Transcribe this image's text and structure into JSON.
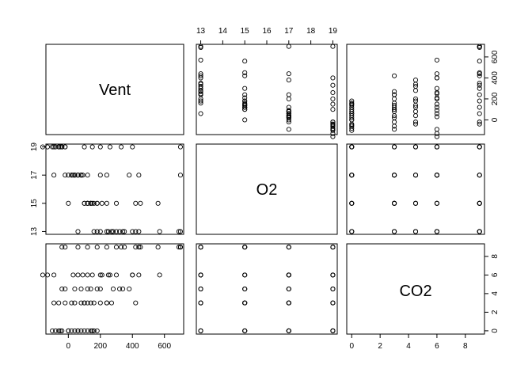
{
  "chart_data": {
    "type": "scatter",
    "title": "",
    "variables": [
      "Vent",
      "O2",
      "CO2"
    ],
    "axis_ticks": {
      "Vent": [
        0,
        200,
        400,
        600
      ],
      "O2": [
        13,
        14,
        15,
        16,
        17,
        18,
        19
      ],
      "O2_left": [
        13,
        15,
        17,
        19
      ],
      "CO2": [
        0,
        2,
        4,
        6,
        8
      ]
    },
    "axis_ranges": {
      "Vent": [
        -140,
        720
      ],
      "O2": [
        12.8,
        19.2
      ],
      "CO2": [
        -0.35,
        9.35
      ]
    },
    "grid": false,
    "legend": "none",
    "observations": [
      {
        "Vent": -100,
        "O2": 19,
        "CO2": 0
      },
      {
        "Vent": -80,
        "O2": 19,
        "CO2": 0
      },
      {
        "Vent": -60,
        "O2": 19,
        "CO2": 0
      },
      {
        "Vent": -50,
        "O2": 19,
        "CO2": 0
      },
      {
        "Vent": -40,
        "O2": 19,
        "CO2": 0
      },
      {
        "Vent": 0,
        "O2": 17,
        "CO2": 0
      },
      {
        "Vent": 20,
        "O2": 17,
        "CO2": 0
      },
      {
        "Vent": 40,
        "O2": 17,
        "CO2": 0
      },
      {
        "Vent": 60,
        "O2": 17,
        "CO2": 0
      },
      {
        "Vent": 80,
        "O2": 17,
        "CO2": 0
      },
      {
        "Vent": 100,
        "O2": 15,
        "CO2": 0
      },
      {
        "Vent": 120,
        "O2": 15,
        "CO2": 0
      },
      {
        "Vent": 140,
        "O2": 15,
        "CO2": 0
      },
      {
        "Vent": 160,
        "O2": 13,
        "CO2": 0
      },
      {
        "Vent": 180,
        "O2": 13,
        "CO2": 0
      },
      {
        "Vent": -90,
        "O2": 19,
        "CO2": 3
      },
      {
        "Vent": -60,
        "O2": 19,
        "CO2": 3
      },
      {
        "Vent": -20,
        "O2": 17,
        "CO2": 3
      },
      {
        "Vent": 20,
        "O2": 17,
        "CO2": 3
      },
      {
        "Vent": 40,
        "O2": 17,
        "CO2": 3
      },
      {
        "Vent": 80,
        "O2": 17,
        "CO2": 3
      },
      {
        "Vent": 100,
        "O2": 15,
        "CO2": 3
      },
      {
        "Vent": 120,
        "O2": 15,
        "CO2": 3
      },
      {
        "Vent": 140,
        "O2": 15,
        "CO2": 3
      },
      {
        "Vent": 160,
        "O2": 15,
        "CO2": 3
      },
      {
        "Vent": 200,
        "O2": 13,
        "CO2": 3
      },
      {
        "Vent": 240,
        "O2": 13,
        "CO2": 3
      },
      {
        "Vent": 270,
        "O2": 13,
        "CO2": 3
      },
      {
        "Vent": -40,
        "O2": 19,
        "CO2": 4.5
      },
      {
        "Vent": -20,
        "O2": 19,
        "CO2": 4.5
      },
      {
        "Vent": 40,
        "O2": 17,
        "CO2": 4.5
      },
      {
        "Vent": 80,
        "O2": 17,
        "CO2": 4.5
      },
      {
        "Vent": 120,
        "O2": 15,
        "CO2": 4.5
      },
      {
        "Vent": 140,
        "O2": 15,
        "CO2": 4.5
      },
      {
        "Vent": 180,
        "O2": 15,
        "CO2": 4.5
      },
      {
        "Vent": 280,
        "O2": 13,
        "CO2": 4.5
      },
      {
        "Vent": 320,
        "O2": 13,
        "CO2": 4.5
      },
      {
        "Vent": 340,
        "O2": 13,
        "CO2": 4.5
      },
      {
        "Vent": -160,
        "O2": 19,
        "CO2": 6
      },
      {
        "Vent": -130,
        "O2": 19,
        "CO2": 6
      },
      {
        "Vent": -90,
        "O2": 17,
        "CO2": 6
      },
      {
        "Vent": 30,
        "O2": 17,
        "CO2": 6
      },
      {
        "Vent": 60,
        "O2": 17,
        "CO2": 6
      },
      {
        "Vent": 90,
        "O2": 17,
        "CO2": 6
      },
      {
        "Vent": 120,
        "O2": 15,
        "CO2": 6
      },
      {
        "Vent": 150,
        "O2": 15,
        "CO2": 6
      },
      {
        "Vent": 210,
        "O2": 15,
        "CO2": 6
      },
      {
        "Vent": 250,
        "O2": 13,
        "CO2": 6
      },
      {
        "Vent": 300,
        "O2": 13,
        "CO2": 6
      },
      {
        "Vent": 400,
        "O2": 13,
        "CO2": 6
      },
      {
        "Vent": 570,
        "O2": 13,
        "CO2": 6
      },
      {
        "Vent": -40,
        "O2": 19,
        "CO2": 9
      },
      {
        "Vent": -20,
        "O2": 19,
        "CO2": 9
      },
      {
        "Vent": 60,
        "O2": 17,
        "CO2": 9
      },
      {
        "Vent": 120,
        "O2": 17,
        "CO2": 9
      },
      {
        "Vent": 180,
        "O2": 15,
        "CO2": 9
      },
      {
        "Vent": 240,
        "O2": 15,
        "CO2": 9
      },
      {
        "Vent": 300,
        "O2": 15,
        "CO2": 9
      },
      {
        "Vent": 350,
        "O2": 13,
        "CO2": 9
      },
      {
        "Vent": 420,
        "O2": 13,
        "CO2": 9
      },
      {
        "Vent": 440,
        "O2": 13,
        "CO2": 9
      },
      {
        "Vent": 690,
        "O2": 13,
        "CO2": 9
      },
      {
        "Vent": 700,
        "O2": 13,
        "CO2": 9
      },
      {
        "Vent": 450,
        "O2": 15,
        "CO2": 9
      },
      {
        "Vent": 560,
        "O2": 15,
        "CO2": 9
      },
      {
        "Vent": 700,
        "O2": 17,
        "CO2": 9
      },
      {
        "Vent": 700,
        "O2": 19,
        "CO2": 9
      },
      {
        "Vent": 200,
        "O2": 17,
        "CO2": 6
      },
      {
        "Vent": 260,
        "O2": 19,
        "CO2": 6
      },
      {
        "Vent": 100,
        "O2": 19,
        "CO2": 3
      },
      {
        "Vent": 200,
        "O2": 19,
        "CO2": 4.5
      },
      {
        "Vent": 380,
        "O2": 17,
        "CO2": 4.5
      },
      {
        "Vent": 420,
        "O2": 15,
        "CO2": 3
      },
      {
        "Vent": 440,
        "O2": 17,
        "CO2": 6
      },
      {
        "Vent": 0,
        "O2": 15,
        "CO2": 0
      },
      {
        "Vent": 60,
        "O2": 13,
        "CO2": 0
      },
      {
        "Vent": 150,
        "O2": 19,
        "CO2": 0
      },
      {
        "Vent": 240,
        "O2": 17,
        "CO2": 3
      },
      {
        "Vent": 330,
        "O2": 19,
        "CO2": 9
      },
      {
        "Vent": 400,
        "O2": 19,
        "CO2": 6
      }
    ]
  }
}
